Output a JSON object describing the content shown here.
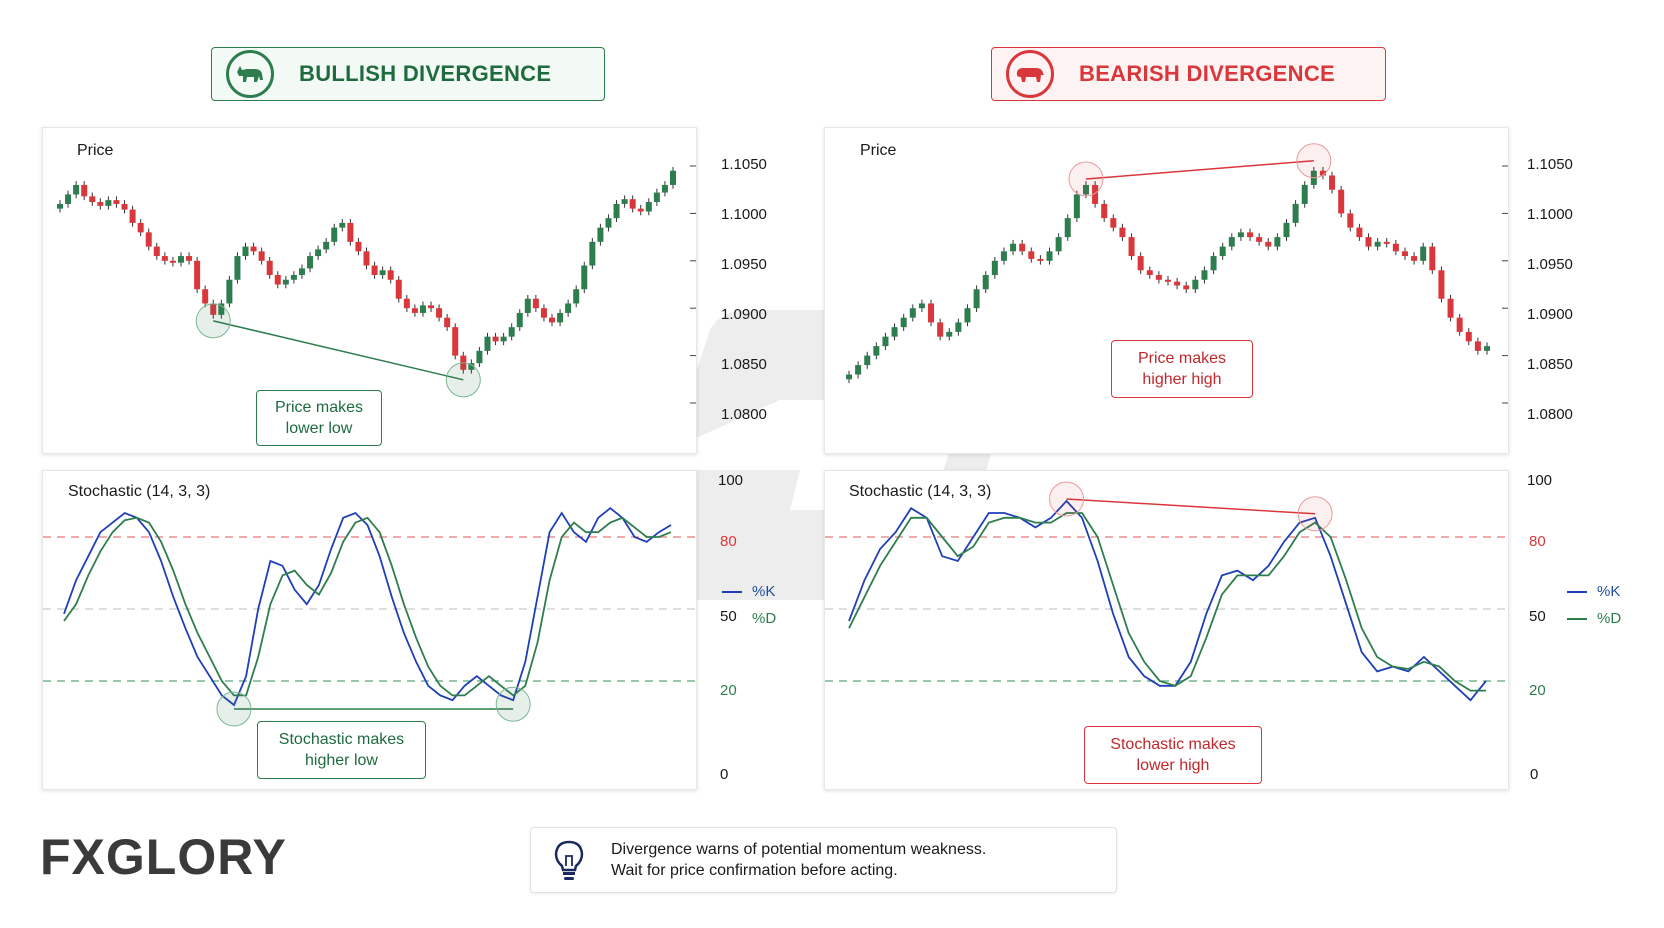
{
  "header": {
    "bullish_title": "BULLISH DIVERGENCE",
    "bearish_title": "BEARISH DIVERGENCE",
    "bull_icon": "bull-icon",
    "bear_icon": "bear-icon"
  },
  "colors": {
    "up": "#2e7d4f",
    "down": "#d9373b",
    "k_line": "#1f3fb8",
    "d_line": "#2e7d4f"
  },
  "panels": {
    "price_label": "Price",
    "stoch_label": "Stochastic (14, 3, 3)"
  },
  "price_axis": [
    "1.1050",
    "1.1000",
    "1.0950",
    "1.0900",
    "1.0850",
    "1.0800"
  ],
  "stoch_axis": [
    "100",
    "80",
    "50",
    "20",
    "0"
  ],
  "legend": {
    "k": "%K",
    "d": "%D"
  },
  "callouts": {
    "bull_price": "Price makes\nlower low",
    "bull_stoch": "Stochastic makes\nhigher low",
    "bear_price": "Price makes\nhigher high",
    "bear_stoch": "Stochastic makes\nlower high"
  },
  "tip": {
    "icon": "lightbulb-icon",
    "line1": "Divergence warns of potential momentum weakness.",
    "line2": "Wait for price confirmation before acting."
  },
  "logo": {
    "part1": "FX",
    "part2": "GLORY"
  },
  "chart_data": [
    {
      "type": "candlestick",
      "title": "Price",
      "ylim": [
        1.08,
        1.105
      ],
      "close": [
        1.101,
        1.102,
        1.103,
        1.1018,
        1.1012,
        1.1008,
        1.1014,
        1.101,
        1.1004,
        1.099,
        1.098,
        1.0965,
        1.0955,
        1.095,
        1.0948,
        1.0955,
        1.095,
        1.092,
        1.0905,
        1.0893,
        1.0905,
        1.093,
        1.0955,
        1.0965,
        1.096,
        1.095,
        1.0935,
        1.0925,
        1.093,
        1.0935,
        1.0942,
        1.0955,
        1.0962,
        1.097,
        1.0985,
        1.099,
        1.097,
        1.096,
        1.0945,
        1.0935,
        1.094,
        1.093,
        1.091,
        1.09,
        1.0895,
        1.0903,
        1.09,
        1.089,
        1.088,
        1.085,
        1.0835,
        1.0842,
        1.0855,
        1.087,
        1.0865,
        1.087,
        1.088,
        1.0895,
        1.091,
        1.09,
        1.089,
        1.0885,
        1.0895,
        1.0905,
        1.092,
        1.0945,
        1.097,
        1.0985,
        1.0995,
        1.101,
        1.1015,
        1.1005,
        1.1002,
        1.1012,
        1.1022,
        1.103,
        1.1045
      ]
    },
    {
      "type": "line",
      "title": "Stochastic (14, 3, 3)",
      "ylim": [
        0,
        100
      ],
      "series": [
        {
          "name": "%K",
          "values": [
            48,
            62,
            72,
            82,
            86,
            90,
            88,
            82,
            70,
            55,
            42,
            30,
            22,
            14,
            10,
            22,
            50,
            70,
            68,
            58,
            52,
            60,
            75,
            88,
            90,
            85,
            72,
            55,
            40,
            28,
            18,
            14,
            12,
            18,
            22,
            18,
            14,
            12,
            28,
            55,
            82,
            90,
            82,
            78,
            88,
            92,
            88,
            80,
            78,
            82,
            85
          ]
        },
        {
          "name": "%D",
          "values": [
            45,
            52,
            64,
            74,
            82,
            87,
            88,
            86,
            78,
            66,
            52,
            40,
            30,
            20,
            14,
            14,
            30,
            52,
            64,
            66,
            60,
            56,
            65,
            78,
            86,
            88,
            82,
            68,
            52,
            38,
            26,
            18,
            14,
            14,
            18,
            22,
            18,
            14,
            18,
            36,
            62,
            80,
            86,
            82,
            82,
            86,
            88,
            84,
            80,
            80,
            82
          ]
        }
      ]
    },
    {
      "type": "candlestick",
      "title": "Price",
      "ylim": [
        1.08,
        1.105
      ],
      "close": [
        1.083,
        1.084,
        1.085,
        1.086,
        1.087,
        1.088,
        1.089,
        1.09,
        1.0905,
        1.0885,
        1.087,
        1.0875,
        1.0885,
        1.09,
        1.092,
        1.0935,
        1.095,
        1.096,
        1.0968,
        1.096,
        1.0952,
        1.095,
        1.096,
        1.0975,
        1.0995,
        1.102,
        1.103,
        1.101,
        1.0995,
        1.0985,
        1.0975,
        1.0955,
        1.094,
        1.0935,
        1.093,
        1.0928,
        1.0924,
        1.092,
        1.093,
        1.094,
        1.0955,
        1.0965,
        1.0975,
        1.098,
        1.0975,
        1.097,
        1.0965,
        1.0975,
        1.099,
        1.101,
        1.103,
        1.1045,
        1.104,
        1.1025,
        1.1,
        1.0985,
        1.0975,
        1.0965,
        1.097,
        1.0968,
        1.096,
        1.0955,
        1.095,
        1.0965,
        1.094,
        1.091,
        1.089,
        1.0875,
        1.0865,
        1.0855,
        1.086
      ]
    },
    {
      "type": "line",
      "title": "Stochastic (14, 3, 3)",
      "ylim": [
        0,
        100
      ],
      "series": [
        {
          "name": "%K",
          "values": [
            45,
            62,
            75,
            82,
            92,
            88,
            72,
            70,
            80,
            90,
            90,
            88,
            84,
            88,
            95,
            88,
            70,
            48,
            30,
            22,
            18,
            18,
            28,
            48,
            64,
            66,
            62,
            68,
            78,
            86,
            88,
            72,
            52,
            32,
            24,
            26,
            24,
            30,
            24,
            18,
            12,
            20
          ]
        },
        {
          "name": "%D",
          "values": [
            42,
            55,
            68,
            78,
            88,
            88,
            80,
            72,
            76,
            86,
            88,
            88,
            86,
            86,
            90,
            90,
            80,
            60,
            40,
            28,
            20,
            18,
            22,
            38,
            56,
            64,
            64,
            64,
            72,
            82,
            86,
            80,
            62,
            42,
            30,
            26,
            25,
            28,
            26,
            20,
            16,
            16
          ]
        }
      ]
    }
  ]
}
